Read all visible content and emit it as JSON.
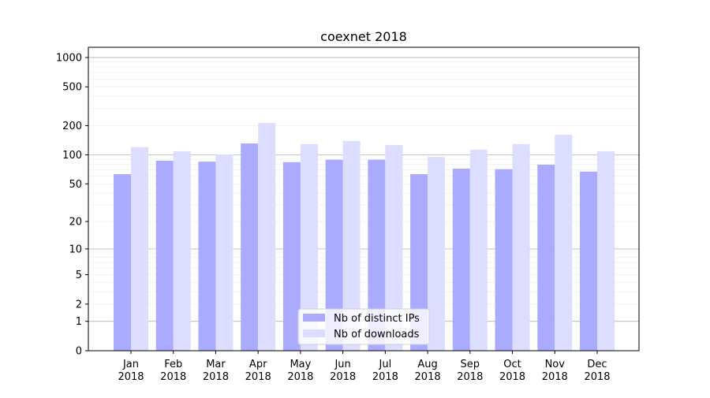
{
  "chart_data": {
    "type": "bar",
    "title": "coexnet 2018",
    "xlabel": "",
    "ylabel": "",
    "yscale": "symlog (log10(1+y))",
    "ylim": [
      0,
      1270
    ],
    "yticks": [
      0,
      1,
      2,
      5,
      10,
      20,
      50,
      100,
      200,
      500,
      1000
    ],
    "grid": true,
    "legend_position": "bottom-center",
    "categories": [
      "Jan\n2018",
      "Feb\n2018",
      "Mar\n2018",
      "Apr\n2018",
      "May\n2018",
      "Jun\n2018",
      "Jul\n2018",
      "Aug\n2018",
      "Sep\n2018",
      "Oct\n2018",
      "Nov\n2018",
      "Dec\n2018"
    ],
    "series": [
      {
        "name": "Nb of distinct IPs",
        "color": "#aaaaff",
        "values": [
          63,
          87,
          85,
          131,
          84,
          89,
          89,
          63,
          72,
          71,
          79,
          67
        ]
      },
      {
        "name": "Nb of downloads",
        "color": "#ddddff",
        "values": [
          120,
          109,
          101,
          213,
          129,
          139,
          126,
          95,
          113,
          129,
          161,
          109
        ]
      }
    ]
  }
}
